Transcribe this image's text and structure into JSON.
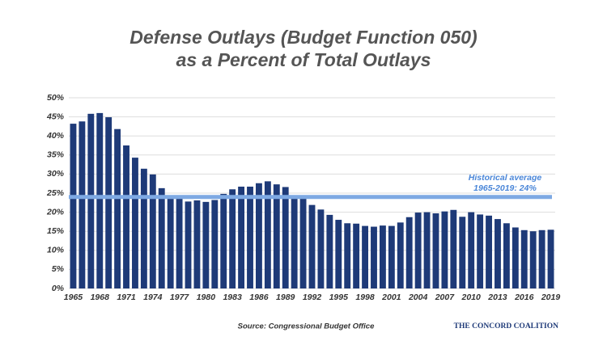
{
  "chart_data": {
    "type": "bar",
    "title": [
      "Defense Outlays (Budget Function 050)",
      "as a Percent of Total Outlays"
    ],
    "categories": [
      "1965",
      null,
      null,
      "1968",
      null,
      null,
      "1971",
      null,
      null,
      "1974",
      null,
      null,
      "1977",
      null,
      null,
      "1980",
      null,
      null,
      "1983",
      null,
      null,
      "1986",
      null,
      null,
      "1989",
      null,
      null,
      "1992",
      null,
      null,
      "1995",
      null,
      null,
      "1998",
      null,
      null,
      "2001",
      null,
      null,
      "2004",
      null,
      null,
      "2007",
      null,
      null,
      "2010",
      null,
      null,
      "2013",
      null,
      null,
      "2016",
      null,
      null,
      "2019"
    ],
    "values": [
      43.2,
      43.8,
      45.8,
      46.0,
      44.9,
      41.8,
      37.5,
      34.3,
      31.4,
      29.9,
      26.3,
      24.3,
      23.9,
      22.8,
      23.1,
      22.7,
      23.2,
      24.8,
      26.0,
      26.7,
      26.7,
      27.6,
      28.1,
      27.3,
      26.6,
      24.3,
      24.0,
      21.9,
      20.7,
      19.3,
      18.0,
      17.1,
      17.0,
      16.4,
      16.2,
      16.5,
      16.4,
      17.3,
      18.7,
      19.9,
      20.0,
      19.7,
      20.2,
      20.6,
      18.8,
      20.0,
      19.4,
      19.1,
      18.2,
      17.1,
      16.0,
      15.3,
      15.0,
      15.3,
      15.4
    ],
    "color": "#1e3a78",
    "average": 24,
    "average_color": "#7ea9e3",
    "annotation": [
      "Historical average",
      "1965-2019: 24%"
    ],
    "ylim": [
      0,
      50
    ],
    "yticks": [
      {
        "value": 0,
        "label": "0%"
      },
      {
        "value": 5,
        "label": "5%"
      },
      {
        "value": 10,
        "label": "10%"
      },
      {
        "value": 15,
        "label": "15%"
      },
      {
        "value": 20,
        "label": "20%"
      },
      {
        "value": 25,
        "label": "25%"
      },
      {
        "value": 30,
        "label": "30%"
      },
      {
        "value": 35,
        "label": "35%"
      },
      {
        "value": 40,
        "label": "40%"
      },
      {
        "value": 45,
        "label": "45%"
      },
      {
        "value": 50,
        "label": "50%"
      }
    ],
    "grid": true,
    "source": "Source: Congressional Budget Office",
    "logo": "The Concord Coalition"
  }
}
